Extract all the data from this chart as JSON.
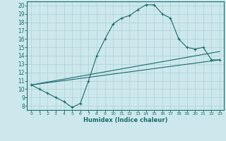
{
  "xlabel": "Humidex (Indice chaleur)",
  "xlim": [
    -0.5,
    23.5
  ],
  "ylim": [
    7.5,
    20.5
  ],
  "yticks": [
    8,
    9,
    10,
    11,
    12,
    13,
    14,
    15,
    16,
    17,
    18,
    19,
    20
  ],
  "xticks": [
    0,
    1,
    2,
    3,
    4,
    5,
    6,
    7,
    8,
    9,
    10,
    11,
    12,
    13,
    14,
    15,
    16,
    17,
    18,
    19,
    20,
    21,
    22,
    23
  ],
  "bg_color": "#cde8ec",
  "line_color": "#1a6b6b",
  "grid_color": "#afd4d8",
  "curve1_x": [
    0,
    1,
    2,
    3,
    4,
    5,
    6,
    7,
    8,
    9,
    10,
    11,
    12,
    13,
    14,
    15,
    16,
    17,
    18,
    19,
    20,
    21,
    22,
    23
  ],
  "curve1_y": [
    10.5,
    10.0,
    9.5,
    9.0,
    8.5,
    7.8,
    8.3,
    11.0,
    14.0,
    16.0,
    17.8,
    18.5,
    18.8,
    19.5,
    20.1,
    20.1,
    19.0,
    18.5,
    16.0,
    15.0,
    14.8,
    15.0,
    13.5,
    13.5
  ],
  "line2_x": [
    0,
    23
  ],
  "line2_y": [
    10.5,
    14.5
  ],
  "line3_x": [
    0,
    23
  ],
  "line3_y": [
    10.5,
    13.5
  ]
}
